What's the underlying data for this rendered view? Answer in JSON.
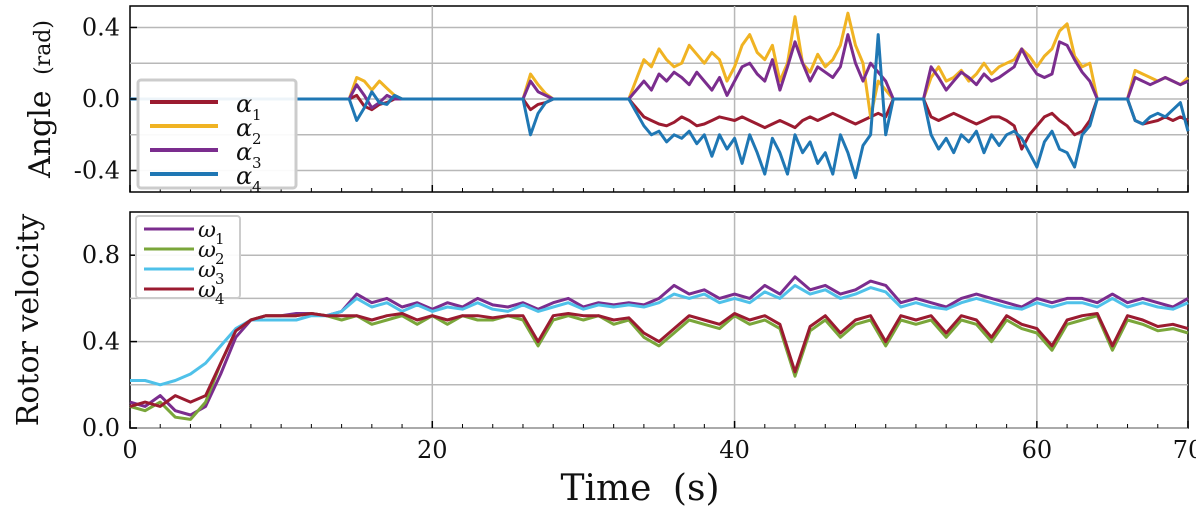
{
  "chart_data": [
    {
      "type": "line",
      "ylabel_main": "Angle",
      "ylabel_unit": "(rad)",
      "xlabel": "",
      "xlim": [
        0,
        70
      ],
      "ylim": [
        -0.52,
        0.52
      ],
      "yticks": [
        0.4,
        0.0,
        -0.4
      ],
      "ytick_labels": [
        "0.4",
        "0.0",
        "-0.4"
      ],
      "xticks": [
        0,
        20,
        40,
        60,
        70
      ],
      "grid": true,
      "legend_position": "left",
      "x": [
        0,
        14.5,
        15,
        15.5,
        16,
        16.5,
        17,
        17.5,
        18,
        18.5,
        19,
        19.5,
        20,
        26,
        26.5,
        27,
        27.5,
        28,
        28.5,
        29,
        29.5,
        30,
        30.5,
        33,
        34,
        34.5,
        35,
        35.5,
        36,
        36.5,
        37,
        37.5,
        38,
        38.5,
        39,
        39.5,
        40,
        40.5,
        41,
        41.5,
        42,
        42.5,
        43,
        43.5,
        44,
        44.5,
        45,
        45.5,
        46,
        46.5,
        47,
        47.5,
        48,
        48.5,
        49,
        49.5,
        50,
        50.5,
        51,
        52.5,
        53,
        53.5,
        54,
        54.5,
        55,
        55.5,
        56,
        56.5,
        57,
        57.5,
        58,
        58.5,
        59,
        59.5,
        60,
        60.5,
        61,
        61.5,
        62,
        62.5,
        63,
        63.5,
        64,
        66,
        66.5,
        67,
        67.5,
        68,
        68.5,
        69,
        69.5,
        70
      ],
      "series": [
        {
          "name": "α1",
          "symbol": "α",
          "sub": "1",
          "color": "#9b1b30",
          "values": [
            0,
            0,
            0.02,
            -0.04,
            -0.06,
            -0.03,
            -0.02,
            0,
            0,
            0,
            0,
            0,
            0,
            0,
            -0.06,
            -0.03,
            -0.02,
            0,
            0,
            0,
            0,
            0,
            0,
            0,
            -0.1,
            -0.12,
            -0.14,
            -0.15,
            -0.13,
            -0.1,
            -0.12,
            -0.15,
            -0.14,
            -0.12,
            -0.1,
            -0.11,
            -0.12,
            -0.1,
            -0.12,
            -0.14,
            -0.16,
            -0.14,
            -0.12,
            -0.14,
            -0.16,
            -0.12,
            -0.1,
            -0.12,
            -0.1,
            -0.08,
            -0.1,
            -0.12,
            -0.14,
            -0.12,
            -0.1,
            -0.08,
            -0.1,
            0,
            0,
            0,
            -0.1,
            -0.12,
            -0.1,
            -0.08,
            -0.1,
            -0.12,
            -0.14,
            -0.12,
            -0.1,
            -0.1,
            -0.12,
            -0.15,
            -0.28,
            -0.2,
            -0.15,
            -0.1,
            -0.08,
            -0.12,
            -0.15,
            -0.2,
            -0.18,
            -0.12,
            0,
            0,
            -0.12,
            -0.14,
            -0.13,
            -0.12,
            -0.1,
            -0.12,
            -0.1,
            -0.12
          ]
        },
        {
          "name": "α2",
          "symbol": "α",
          "sub": "2",
          "color": "#f0b323",
          "values": [
            0,
            0,
            0.12,
            0.1,
            0.05,
            0.1,
            0.06,
            0.02,
            0,
            0,
            0,
            0,
            0,
            0,
            0.14,
            0.08,
            0.03,
            0,
            0,
            0,
            0,
            0,
            0,
            0,
            0.22,
            0.18,
            0.28,
            0.22,
            0.18,
            0.2,
            0.3,
            0.25,
            0.2,
            0.26,
            0.22,
            0.1,
            0.18,
            0.3,
            0.36,
            0.26,
            0.22,
            0.3,
            0.1,
            0.2,
            0.46,
            0.2,
            0.15,
            0.25,
            0.18,
            0.22,
            0.3,
            0.48,
            0.3,
            0.2,
            -0.1,
            0.1,
            0.05,
            0,
            0,
            0,
            0.12,
            0.18,
            0.1,
            0.12,
            0.16,
            0.1,
            0.14,
            0.2,
            0.14,
            0.18,
            0.2,
            0.22,
            0.28,
            0.24,
            0.18,
            0.24,
            0.28,
            0.38,
            0.42,
            0.24,
            0.18,
            0.2,
            0,
            0,
            0.16,
            0.14,
            0.12,
            0.1,
            0.12,
            0.1,
            0.08,
            0.12
          ]
        },
        {
          "name": "α3",
          "symbol": "α",
          "sub": "3",
          "color": "#7b2d8e",
          "values": [
            0,
            0,
            0.08,
            0.02,
            -0.05,
            -0.02,
            0.02,
            0,
            0,
            0,
            0,
            0,
            0,
            0,
            0.1,
            0.04,
            0.02,
            0,
            0,
            0,
            0,
            0,
            0,
            0,
            0.1,
            0.05,
            0.14,
            0.1,
            0.15,
            0.12,
            0.08,
            0.15,
            0.1,
            0.05,
            0.12,
            0.02,
            0.1,
            0.18,
            0.2,
            0.14,
            0.1,
            0.22,
            0.05,
            0.18,
            0.32,
            0.2,
            0.1,
            0.18,
            0.15,
            0.12,
            0.18,
            0.36,
            0.2,
            0.1,
            0.2,
            0.15,
            0.1,
            0,
            0,
            0,
            0.18,
            0.12,
            0.05,
            0.1,
            0.15,
            0.12,
            0.08,
            0.14,
            0.1,
            0.12,
            0.15,
            0.18,
            0.28,
            0.2,
            0.14,
            0.12,
            0.14,
            0.32,
            0.3,
            0.22,
            0.15,
            0.1,
            0,
            0,
            0.12,
            0.1,
            0.08,
            0.1,
            0.12,
            0.1,
            0.08,
            0.1
          ]
        },
        {
          "name": "α4",
          "symbol": "α",
          "sub": "4",
          "color": "#1f77b4",
          "values": [
            0,
            0,
            -0.12,
            -0.05,
            0.04,
            -0.02,
            -0.03,
            0.02,
            0,
            0,
            0,
            0,
            0,
            0,
            -0.2,
            -0.08,
            -0.02,
            0,
            0,
            0,
            0,
            0,
            0,
            0,
            -0.15,
            -0.2,
            -0.18,
            -0.24,
            -0.2,
            -0.22,
            -0.18,
            -0.25,
            -0.2,
            -0.32,
            -0.2,
            -0.28,
            -0.22,
            -0.36,
            -0.2,
            -0.3,
            -0.42,
            -0.22,
            -0.3,
            -0.42,
            -0.2,
            -0.3,
            -0.24,
            -0.36,
            -0.3,
            -0.42,
            -0.2,
            -0.3,
            -0.44,
            -0.26,
            -0.2,
            0.36,
            -0.2,
            0,
            0,
            0,
            -0.2,
            -0.28,
            -0.22,
            -0.3,
            -0.2,
            -0.24,
            -0.18,
            -0.3,
            -0.2,
            -0.26,
            -0.2,
            -0.18,
            -0.22,
            -0.3,
            -0.38,
            -0.24,
            -0.18,
            -0.28,
            -0.3,
            -0.38,
            -0.2,
            -0.15,
            0,
            0,
            -0.12,
            -0.14,
            -0.1,
            -0.08,
            -0.1,
            -0.06,
            -0.02,
            -0.18
          ]
        }
      ]
    },
    {
      "type": "line",
      "ylabel_main": "Rotor velocity",
      "xlabel_main": "Time",
      "xlabel_unit": "(s)",
      "xlim": [
        0,
        70
      ],
      "ylim": [
        0,
        1.0
      ],
      "yticks": [
        0.0,
        0.4,
        0.8
      ],
      "ytick_labels": [
        "0.0",
        "0.4",
        "0.8"
      ],
      "xticks": [
        0,
        20,
        40,
        60,
        70
      ],
      "xtick_labels": [
        "0",
        "20",
        "40",
        "60",
        "70"
      ],
      "grid": true,
      "legend_position": "top-left",
      "x": [
        0,
        1,
        2,
        3,
        4,
        5,
        6,
        7,
        8,
        9,
        10,
        11,
        12,
        13,
        14,
        15,
        16,
        17,
        18,
        19,
        20,
        21,
        22,
        23,
        24,
        25,
        26,
        27,
        28,
        29,
        30,
        31,
        32,
        33,
        34,
        35,
        36,
        37,
        38,
        39,
        40,
        41,
        42,
        43,
        44,
        45,
        46,
        47,
        48,
        49,
        50,
        51,
        52,
        53,
        54,
        55,
        56,
        57,
        58,
        59,
        60,
        61,
        62,
        63,
        64,
        65,
        66,
        67,
        68,
        69,
        70
      ],
      "series": [
        {
          "name": "ω1",
          "symbol": "ω",
          "sub": "1",
          "color": "#7b2d8e",
          "values": [
            0.12,
            0.1,
            0.15,
            0.08,
            0.06,
            0.1,
            0.25,
            0.42,
            0.5,
            0.52,
            0.52,
            0.53,
            0.53,
            0.52,
            0.54,
            0.62,
            0.58,
            0.6,
            0.56,
            0.58,
            0.55,
            0.58,
            0.56,
            0.6,
            0.57,
            0.56,
            0.58,
            0.55,
            0.58,
            0.6,
            0.56,
            0.58,
            0.57,
            0.58,
            0.57,
            0.6,
            0.66,
            0.62,
            0.64,
            0.6,
            0.62,
            0.6,
            0.66,
            0.62,
            0.7,
            0.64,
            0.66,
            0.62,
            0.64,
            0.68,
            0.66,
            0.58,
            0.6,
            0.58,
            0.56,
            0.6,
            0.62,
            0.6,
            0.58,
            0.56,
            0.6,
            0.58,
            0.6,
            0.6,
            0.58,
            0.62,
            0.58,
            0.6,
            0.58,
            0.56,
            0.6
          ]
        },
        {
          "name": "ω2",
          "symbol": "ω",
          "sub": "2",
          "color": "#7aa63a",
          "values": [
            0.1,
            0.08,
            0.12,
            0.05,
            0.04,
            0.12,
            0.3,
            0.45,
            0.5,
            0.52,
            0.52,
            0.52,
            0.53,
            0.52,
            0.5,
            0.52,
            0.48,
            0.5,
            0.52,
            0.48,
            0.52,
            0.48,
            0.52,
            0.5,
            0.5,
            0.52,
            0.5,
            0.38,
            0.5,
            0.52,
            0.5,
            0.52,
            0.48,
            0.5,
            0.42,
            0.38,
            0.44,
            0.5,
            0.48,
            0.46,
            0.52,
            0.48,
            0.5,
            0.46,
            0.24,
            0.45,
            0.5,
            0.42,
            0.48,
            0.5,
            0.38,
            0.5,
            0.48,
            0.5,
            0.42,
            0.5,
            0.48,
            0.4,
            0.5,
            0.46,
            0.44,
            0.36,
            0.48,
            0.5,
            0.52,
            0.36,
            0.5,
            0.48,
            0.45,
            0.46,
            0.44
          ]
        },
        {
          "name": "ω3",
          "symbol": "ω",
          "sub": "3",
          "color": "#4fc1e9",
          "values": [
            0.22,
            0.22,
            0.2,
            0.22,
            0.25,
            0.3,
            0.38,
            0.46,
            0.5,
            0.5,
            0.5,
            0.5,
            0.52,
            0.52,
            0.54,
            0.6,
            0.56,
            0.58,
            0.54,
            0.57,
            0.54,
            0.56,
            0.55,
            0.58,
            0.55,
            0.54,
            0.57,
            0.54,
            0.56,
            0.58,
            0.55,
            0.57,
            0.56,
            0.57,
            0.56,
            0.58,
            0.62,
            0.6,
            0.62,
            0.58,
            0.6,
            0.58,
            0.63,
            0.6,
            0.66,
            0.62,
            0.64,
            0.6,
            0.62,
            0.65,
            0.63,
            0.56,
            0.58,
            0.56,
            0.55,
            0.58,
            0.6,
            0.58,
            0.56,
            0.55,
            0.58,
            0.56,
            0.58,
            0.58,
            0.56,
            0.6,
            0.56,
            0.58,
            0.56,
            0.55,
            0.58
          ]
        },
        {
          "name": "ω4",
          "symbol": "ω",
          "sub": "4",
          "color": "#9b1b30",
          "values": [
            0.1,
            0.12,
            0.1,
            0.15,
            0.12,
            0.15,
            0.3,
            0.45,
            0.5,
            0.52,
            0.52,
            0.52,
            0.53,
            0.52,
            0.52,
            0.52,
            0.5,
            0.52,
            0.53,
            0.5,
            0.52,
            0.5,
            0.52,
            0.52,
            0.51,
            0.52,
            0.52,
            0.4,
            0.52,
            0.53,
            0.52,
            0.52,
            0.5,
            0.51,
            0.44,
            0.4,
            0.46,
            0.52,
            0.5,
            0.48,
            0.53,
            0.5,
            0.52,
            0.48,
            0.26,
            0.47,
            0.52,
            0.44,
            0.5,
            0.52,
            0.4,
            0.52,
            0.5,
            0.52,
            0.44,
            0.52,
            0.5,
            0.42,
            0.52,
            0.48,
            0.46,
            0.38,
            0.5,
            0.52,
            0.53,
            0.38,
            0.52,
            0.5,
            0.47,
            0.48,
            0.46
          ]
        }
      ]
    }
  ]
}
